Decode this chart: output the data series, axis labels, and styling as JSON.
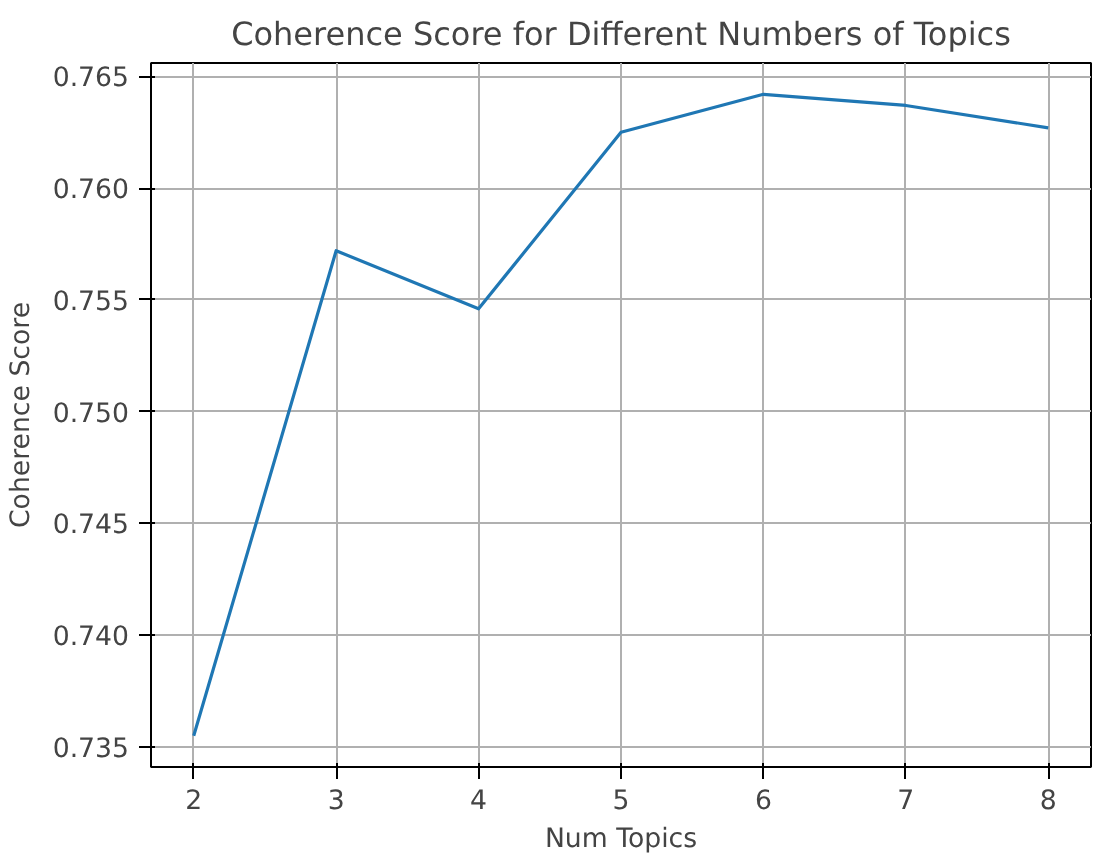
{
  "chart_data": {
    "type": "line",
    "title": "Coherence Score for Different Numbers of Topics",
    "xlabel": "Num Topics",
    "ylabel": "Coherence Score",
    "x": [
      2,
      3,
      4,
      5,
      6,
      7,
      8
    ],
    "series": [
      {
        "color": "#1f77b4",
        "values": [
          0.7355,
          0.7572,
          0.7546,
          0.7625,
          0.7642,
          0.7637,
          0.7627
        ]
      }
    ],
    "xlim": [
      1.7,
      8.3
    ],
    "ylim": [
      0.7341,
      0.7656
    ],
    "xticks": [
      2,
      3,
      4,
      5,
      6,
      7,
      8
    ],
    "yticks": [
      {
        "value": 0.735,
        "label": "0.735"
      },
      {
        "value": 0.74,
        "label": "0.740"
      },
      {
        "value": 0.745,
        "label": "0.745"
      },
      {
        "value": 0.75,
        "label": "0.750"
      },
      {
        "value": 0.755,
        "label": "0.755"
      },
      {
        "value": 0.76,
        "label": "0.760"
      },
      {
        "value": 0.765,
        "label": "0.765"
      }
    ],
    "grid": true,
    "line_style": "solid",
    "marker": "none"
  }
}
